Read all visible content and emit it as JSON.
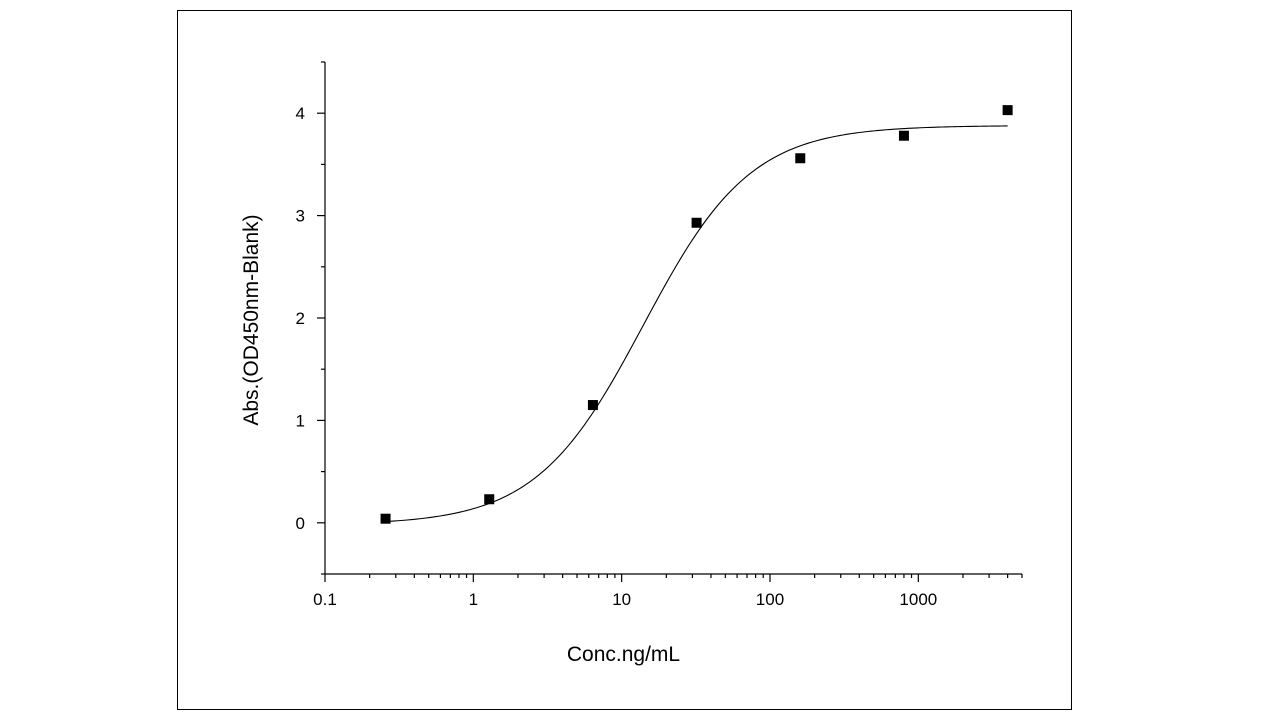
{
  "chart_data": {
    "type": "scatter",
    "title": "",
    "xlabel": "Conc.ng/mL",
    "ylabel": "Abs.(OD450nm-Blank)",
    "xscale": "log",
    "xlim": [
      0.1,
      5000
    ],
    "ylim": [
      -0.5,
      4.5
    ],
    "xticks": [
      {
        "value": 0.1,
        "label": "0.1"
      },
      {
        "value": 1,
        "label": "1"
      },
      {
        "value": 10,
        "label": "10"
      },
      {
        "value": 100,
        "label": "100"
      },
      {
        "value": 1000,
        "label": "1000"
      }
    ],
    "yticks": [
      {
        "value": 0,
        "label": "0"
      },
      {
        "value": 1,
        "label": "1"
      },
      {
        "value": 2,
        "label": "2"
      },
      {
        "value": 3,
        "label": "3"
      },
      {
        "value": 4,
        "label": "4"
      }
    ],
    "series": [
      {
        "marker": "square",
        "color": "#000000",
        "points": [
          {
            "x": 0.256,
            "y": 0.04
          },
          {
            "x": 1.28,
            "y": 0.23
          },
          {
            "x": 6.4,
            "y": 1.15
          },
          {
            "x": 32,
            "y": 2.93
          },
          {
            "x": 160,
            "y": 3.56
          },
          {
            "x": 800,
            "y": 3.78
          },
          {
            "x": 4000,
            "y": 4.03
          }
        ]
      }
    ],
    "fit_curve": {
      "type": "4PL",
      "color": "#000000",
      "bottom": -0.02,
      "top": 3.88,
      "ec50": 14,
      "hill": 1.2,
      "x_range": [
        0.256,
        4000
      ]
    },
    "grid": false,
    "legend": "none"
  }
}
